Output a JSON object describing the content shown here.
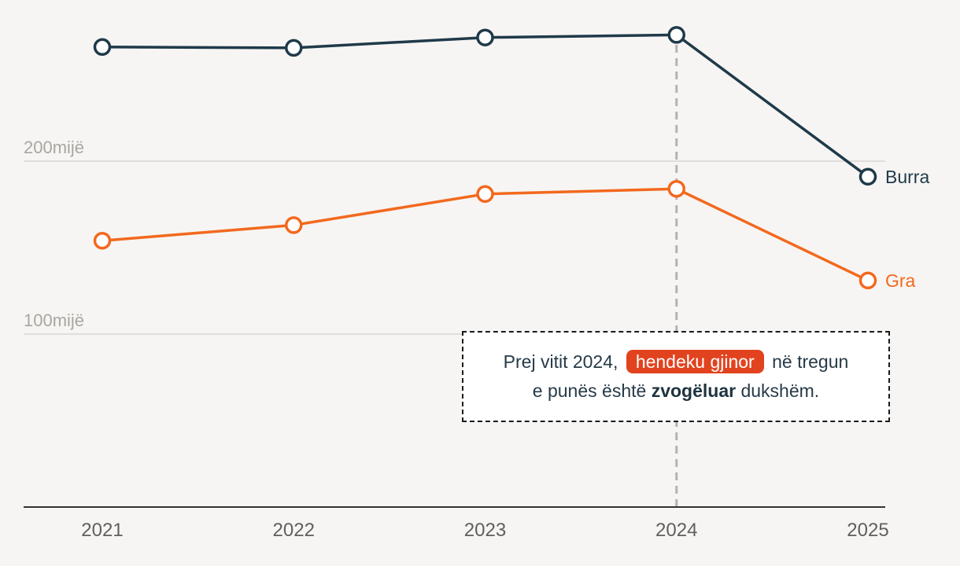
{
  "chart_data": {
    "type": "line",
    "title": "",
    "xlabel": "",
    "ylabel": "",
    "categories": [
      "2021",
      "2022",
      "2023",
      "2024",
      "2025"
    ],
    "ylim": [
      0,
      280
    ],
    "y_gridlines": [
      {
        "value": 100,
        "label": "100mijë"
      },
      {
        "value": 200,
        "label": "200mijë"
      }
    ],
    "series": [
      {
        "name": "Burra",
        "color": "#1f3a4a",
        "values": [
          266,
          265.5,
          271.5,
          273,
          191
        ]
      },
      {
        "name": "Gra",
        "color": "#f2691e",
        "values": [
          154,
          163,
          181,
          184,
          131
        ]
      }
    ],
    "highlight_category": "2024",
    "grid": true
  },
  "annotation": {
    "line1_before": "Prej vitit 2024,",
    "line1_highlight": "hendeku gjinor",
    "line1_after": "në tregun",
    "line2_before": "e punës është",
    "line2_bold": "zvogëluar",
    "line2_after": "dukshëm."
  },
  "colors": {
    "background": "#f7f5f3",
    "axis": "#333333",
    "gridline": "#d8d5d2",
    "highlight_line": "#b5b2af",
    "annotation_pill": "#e2431f"
  }
}
